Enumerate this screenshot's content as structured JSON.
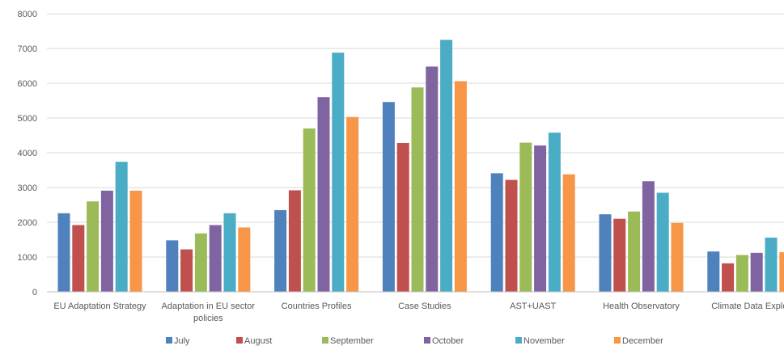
{
  "chart_data": {
    "type": "bar",
    "categories": [
      [
        "EU  Adaptation Strategy"
      ],
      [
        "Adaptation in EU sector",
        "policies"
      ],
      [
        "Countries Profiles"
      ],
      [
        "Case Studies"
      ],
      [
        "AST+UAST"
      ],
      [
        "Health Observatory"
      ],
      [
        "Climate Data Explo"
      ]
    ],
    "series": [
      {
        "name": "July",
        "color": "#4f81bd",
        "values": [
          2260,
          1480,
          2350,
          5460,
          3410,
          2230,
          1160
        ]
      },
      {
        "name": "August",
        "color": "#c0504d",
        "values": [
          1920,
          1220,
          2920,
          4280,
          3220,
          2100,
          820
        ]
      },
      {
        "name": "September",
        "color": "#9bbb59",
        "values": [
          2600,
          1680,
          4700,
          5880,
          4290,
          2310,
          1060
        ]
      },
      {
        "name": "October",
        "color": "#8064a2",
        "values": [
          2910,
          1920,
          5600,
          6480,
          4210,
          3180,
          1120
        ]
      },
      {
        "name": "November",
        "color": "#4bacc6",
        "values": [
          3740,
          2260,
          6880,
          7250,
          4580,
          2850,
          1560
        ]
      },
      {
        "name": "December",
        "color": "#f79646",
        "values": [
          2910,
          1850,
          5030,
          6060,
          3380,
          1980,
          1140
        ]
      }
    ],
    "y_ticks": [
      "0",
      "1000",
      "2000",
      "3000",
      "4000",
      "5000",
      "6000",
      "7000",
      "8000"
    ],
    "ylim": [
      0,
      8000
    ],
    "grid": true,
    "legend_position": "bottom"
  }
}
